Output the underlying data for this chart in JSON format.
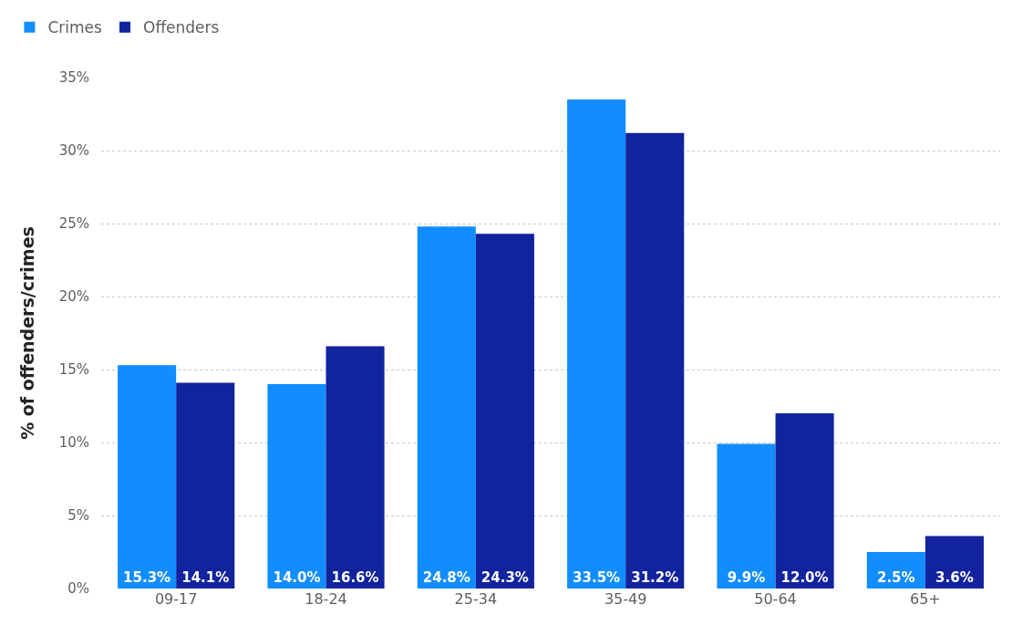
{
  "chart_data": {
    "type": "bar",
    "ylabel": "% of offenders/crimes",
    "categories": [
      "09-17",
      "18-24",
      "25-34",
      "35-49",
      "50-64",
      "65+"
    ],
    "series": [
      {
        "name": "Crimes",
        "color": "#118dff",
        "values": [
          15.3,
          14.0,
          24.8,
          33.5,
          9.9,
          2.5
        ],
        "value_labels": [
          "15.3%",
          "14.0%",
          "24.8%",
          "33.5%",
          "9.9%",
          "2.5%"
        ]
      },
      {
        "name": "Offenders",
        "color": "#12239e",
        "values": [
          14.1,
          16.6,
          24.3,
          31.2,
          12.0,
          3.6
        ],
        "value_labels": [
          "14.1%",
          "16.6%",
          "24.3%",
          "31.2%",
          "12.0%",
          "3.6%"
        ]
      }
    ],
    "ylim": [
      0,
      35
    ],
    "yticks": [
      {
        "value": 0,
        "label": "0%"
      },
      {
        "value": 5,
        "label": "5%"
      },
      {
        "value": 10,
        "label": "10%"
      },
      {
        "value": 15,
        "label": "15%"
      },
      {
        "value": 20,
        "label": "20%"
      },
      {
        "value": 25,
        "label": "25%"
      },
      {
        "value": 30,
        "label": "30%"
      },
      {
        "value": 35,
        "label": "35%"
      }
    ],
    "grid": "y",
    "legend": "top left"
  }
}
